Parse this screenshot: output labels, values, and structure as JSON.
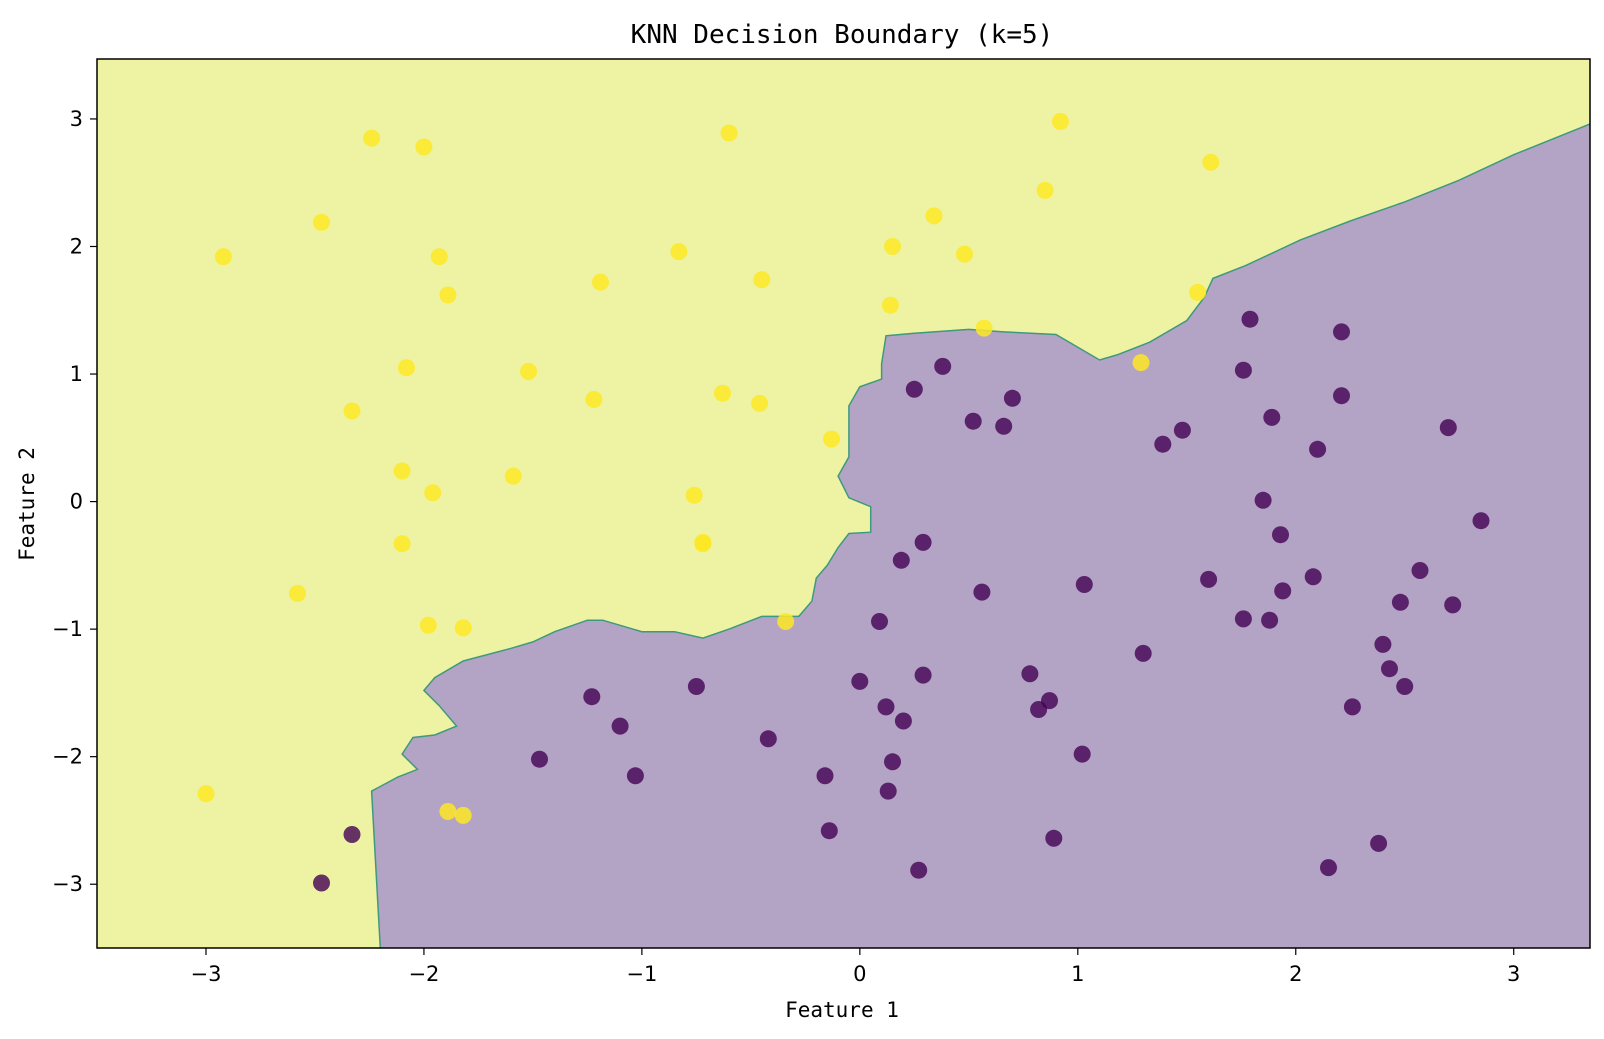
{
  "chart_data": {
    "type": "scatter",
    "title": "KNN Decision Boundary (k=5)",
    "xlabel": "Feature 1",
    "ylabel": "Feature 2",
    "xlim": [
      -3.5,
      3.35
    ],
    "ylim": [
      -3.5,
      3.47
    ],
    "xticks": [
      -3,
      -2,
      -1,
      0,
      1,
      2,
      3
    ],
    "yticks": [
      -3,
      -2,
      -1,
      0,
      1,
      2,
      3
    ],
    "xtick_labels": [
      "−3",
      "−2",
      "−1",
      "0",
      "1",
      "2",
      "3"
    ],
    "ytick_labels": [
      "−3",
      "−2",
      "−1",
      "0",
      "1",
      "2",
      "3"
    ],
    "grid": false,
    "legend": "none",
    "colors": {
      "class_0_point": "#440154",
      "class_1_point": "#fde725",
      "class_0_region": "#b3a3c4",
      "class_1_region": "#eef3a3",
      "boundary": "#3e9a7e"
    },
    "boundary": [
      [
        -2.2,
        -3.5
      ],
      [
        -2.24,
        -2.27
      ],
      [
        -2.12,
        -2.16
      ],
      [
        -2.03,
        -2.1
      ],
      [
        -2.1,
        -1.98
      ],
      [
        -2.05,
        -1.85
      ],
      [
        -1.95,
        -1.83
      ],
      [
        -1.85,
        -1.76
      ],
      [
        -1.93,
        -1.6
      ],
      [
        -2.0,
        -1.48
      ],
      [
        -1.95,
        -1.38
      ],
      [
        -1.82,
        -1.25
      ],
      [
        -1.6,
        -1.15
      ],
      [
        -1.5,
        -1.1
      ],
      [
        -1.4,
        -1.02
      ],
      [
        -1.25,
        -0.93
      ],
      [
        -1.18,
        -0.93
      ],
      [
        -1.0,
        -1.02
      ],
      [
        -0.85,
        -1.02
      ],
      [
        -0.72,
        -1.07
      ],
      [
        -0.6,
        -1.0
      ],
      [
        -0.45,
        -0.9
      ],
      [
        -0.28,
        -0.9
      ],
      [
        -0.22,
        -0.78
      ],
      [
        -0.2,
        -0.6
      ],
      [
        -0.15,
        -0.5
      ],
      [
        -0.1,
        -0.36
      ],
      [
        -0.05,
        -0.25
      ],
      [
        0.05,
        -0.24
      ],
      [
        0.05,
        -0.04
      ],
      [
        -0.05,
        0.03
      ],
      [
        -0.1,
        0.2
      ],
      [
        -0.05,
        0.35
      ],
      [
        -0.05,
        0.75
      ],
      [
        0.0,
        0.9
      ],
      [
        0.1,
        0.96
      ],
      [
        0.1,
        1.08
      ],
      [
        0.12,
        1.3
      ],
      [
        0.25,
        1.32
      ],
      [
        0.5,
        1.35
      ],
      [
        0.66,
        1.33
      ],
      [
        0.9,
        1.31
      ],
      [
        1.1,
        1.11
      ],
      [
        1.18,
        1.15
      ],
      [
        1.33,
        1.25
      ],
      [
        1.5,
        1.42
      ],
      [
        1.58,
        1.6
      ],
      [
        1.62,
        1.75
      ],
      [
        1.77,
        1.85
      ],
      [
        2.02,
        2.05
      ],
      [
        2.25,
        2.2
      ],
      [
        2.5,
        2.35
      ],
      [
        2.75,
        2.52
      ],
      [
        3.0,
        2.72
      ],
      [
        3.35,
        2.96
      ]
    ],
    "series": [
      {
        "class": "yellow",
        "points": [
          [
            -2.92,
            1.92
          ],
          [
            -3.0,
            -2.29
          ],
          [
            -2.58,
            -0.72
          ],
          [
            -2.47,
            2.19
          ],
          [
            -2.24,
            2.85
          ],
          [
            -2.33,
            0.71
          ],
          [
            -2.0,
            2.78
          ],
          [
            -1.93,
            1.92
          ],
          [
            -1.89,
            1.62
          ],
          [
            -2.08,
            1.05
          ],
          [
            -2.1,
            0.24
          ],
          [
            -1.96,
            0.07
          ],
          [
            -2.1,
            -0.33
          ],
          [
            -1.98,
            -0.97
          ],
          [
            -1.82,
            -0.99
          ],
          [
            -1.89,
            -2.43
          ],
          [
            -1.82,
            -2.46
          ],
          [
            -1.52,
            1.02
          ],
          [
            -1.59,
            0.2
          ],
          [
            -1.19,
            1.72
          ],
          [
            -1.22,
            0.8
          ],
          [
            -0.83,
            1.96
          ],
          [
            -0.6,
            2.89
          ],
          [
            -0.45,
            1.74
          ],
          [
            -0.63,
            0.85
          ],
          [
            -0.46,
            0.77
          ],
          [
            -0.76,
            0.05
          ],
          [
            -0.72,
            -0.33
          ],
          [
            -0.72,
            -0.32
          ],
          [
            -0.34,
            -0.94
          ],
          [
            -0.13,
            0.49
          ],
          [
            0.15,
            2.0
          ],
          [
            0.14,
            1.54
          ],
          [
            0.34,
            2.24
          ],
          [
            0.48,
            1.94
          ],
          [
            0.57,
            1.36
          ],
          [
            0.85,
            2.44
          ],
          [
            0.92,
            2.98
          ],
          [
            1.29,
            1.09
          ],
          [
            1.55,
            1.64
          ],
          [
            1.61,
            2.66
          ]
        ]
      },
      {
        "class": "purple",
        "points": [
          [
            -2.33,
            -2.61
          ],
          [
            -2.47,
            -2.99
          ],
          [
            -1.47,
            -2.02
          ],
          [
            -1.23,
            -1.53
          ],
          [
            -1.1,
            -1.76
          ],
          [
            -1.03,
            -2.15
          ],
          [
            -0.75,
            -1.45
          ],
          [
            -0.42,
            -1.86
          ],
          [
            -0.16,
            -2.15
          ],
          [
            -0.14,
            -2.58
          ],
          [
            0.0,
            -1.41
          ],
          [
            0.09,
            -0.94
          ],
          [
            0.12,
            -1.61
          ],
          [
            0.13,
            -2.27
          ],
          [
            0.15,
            -2.04
          ],
          [
            0.19,
            -0.46
          ],
          [
            0.2,
            -1.72
          ],
          [
            0.25,
            0.88
          ],
          [
            0.27,
            -2.89
          ],
          [
            0.29,
            -0.32
          ],
          [
            0.29,
            -1.36
          ],
          [
            0.38,
            1.06
          ],
          [
            0.52,
            0.63
          ],
          [
            0.56,
            -0.71
          ],
          [
            0.66,
            0.59
          ],
          [
            0.7,
            0.81
          ],
          [
            0.78,
            -1.35
          ],
          [
            0.82,
            -1.63
          ],
          [
            0.87,
            -1.56
          ],
          [
            0.89,
            -2.64
          ],
          [
            1.02,
            -1.98
          ],
          [
            1.03,
            -0.65
          ],
          [
            1.3,
            -1.19
          ],
          [
            1.39,
            0.45
          ],
          [
            1.48,
            0.56
          ],
          [
            1.6,
            -0.61
          ],
          [
            1.76,
            -0.92
          ],
          [
            1.76,
            1.03
          ],
          [
            1.79,
            1.43
          ],
          [
            1.85,
            0.01
          ],
          [
            1.88,
            -0.93
          ],
          [
            1.89,
            0.66
          ],
          [
            1.93,
            -0.26
          ],
          [
            1.94,
            -0.7
          ],
          [
            2.08,
            -0.59
          ],
          [
            2.1,
            0.41
          ],
          [
            2.15,
            -2.87
          ],
          [
            2.21,
            1.33
          ],
          [
            2.21,
            0.83
          ],
          [
            2.26,
            -1.61
          ],
          [
            2.38,
            -2.68
          ],
          [
            2.4,
            -1.12
          ],
          [
            2.43,
            -1.31
          ],
          [
            2.48,
            -0.79
          ],
          [
            2.5,
            -1.45
          ],
          [
            2.57,
            -0.54
          ],
          [
            2.7,
            0.58
          ],
          [
            2.72,
            -0.81
          ],
          [
            2.85,
            -0.15
          ]
        ]
      }
    ]
  }
}
